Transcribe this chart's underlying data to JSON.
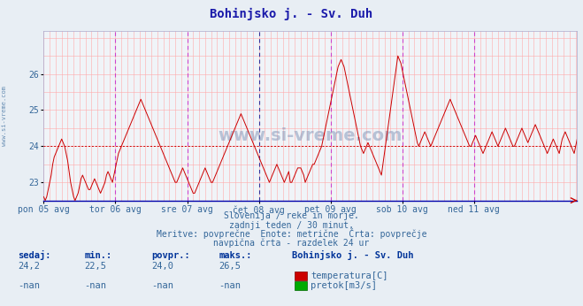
{
  "title": "Bohinjsko j. - Sv. Duh",
  "title_color": "#1a1aaa",
  "bg_color": "#e8eef4",
  "plot_bg_color": "#f0f4f8",
  "line_color": "#cc0000",
  "avg_line_color": "#cc0000",
  "avg_value": 24.0,
  "ylim": [
    22.5,
    27.2
  ],
  "yticks": [
    23,
    24,
    25,
    26
  ],
  "ylabel_color": "#336699",
  "xlabel_color": "#336699",
  "x_labels": [
    "pon 05 avg",
    "tor 06 avg",
    "sre 07 avg",
    "čet 08 avg",
    "pet 09 avg",
    "sob 10 avg",
    "ned 11 avg"
  ],
  "vline_color_day": "#333399",
  "vline_color_halfday": "#cc44cc",
  "vline_color_grid": "#ffaaaa",
  "hline_color_grid": "#ffaaaa",
  "watermark": "www.si-vreme.com",
  "subtitle1": "Slovenija / reke in morje.",
  "subtitle2": "zadnji teden / 30 minut.",
  "subtitle3": "Meritve: povprečne  Enote: metrične  Črta: povprečje",
  "subtitle4": "navpična črta - razdelek 24 ur",
  "subtitle_color": "#336699",
  "stat_label_color": "#336699",
  "stat_bold_color": "#003399",
  "sedaj": "24,2",
  "min_val": "22,5",
  "povpr": "24,0",
  "maks": "26,5",
  "station_name": "Bohinjsko j. - Sv. Duh",
  "legend_temp_color": "#cc0000",
  "legend_flow_color": "#00aa00",
  "temp_data": [
    22.6,
    22.5,
    22.6,
    22.8,
    23.0,
    23.2,
    23.5,
    23.7,
    23.8,
    23.9,
    24.0,
    24.1,
    24.2,
    24.1,
    24.0,
    23.8,
    23.6,
    23.3,
    23.0,
    22.8,
    22.6,
    22.5,
    22.6,
    22.7,
    22.9,
    23.1,
    23.2,
    23.1,
    23.0,
    22.9,
    22.8,
    22.8,
    22.9,
    23.0,
    23.1,
    23.0,
    22.9,
    22.8,
    22.7,
    22.8,
    22.9,
    23.0,
    23.2,
    23.3,
    23.2,
    23.1,
    23.0,
    23.2,
    23.4,
    23.6,
    23.8,
    23.9,
    24.0,
    24.1,
    24.2,
    24.3,
    24.4,
    24.5,
    24.6,
    24.7,
    24.8,
    24.9,
    25.0,
    25.1,
    25.2,
    25.3,
    25.2,
    25.1,
    25.0,
    24.9,
    24.8,
    24.7,
    24.6,
    24.5,
    24.4,
    24.3,
    24.2,
    24.1,
    24.0,
    23.9,
    23.8,
    23.7,
    23.6,
    23.5,
    23.4,
    23.3,
    23.2,
    23.1,
    23.0,
    23.0,
    23.1,
    23.2,
    23.3,
    23.4,
    23.3,
    23.2,
    23.1,
    23.0,
    22.9,
    22.8,
    22.7,
    22.7,
    22.8,
    22.9,
    23.0,
    23.1,
    23.2,
    23.3,
    23.4,
    23.3,
    23.2,
    23.1,
    23.0,
    23.0,
    23.1,
    23.2,
    23.3,
    23.4,
    23.5,
    23.6,
    23.7,
    23.8,
    23.9,
    24.0,
    24.1,
    24.2,
    24.3,
    24.4,
    24.5,
    24.6,
    24.7,
    24.8,
    24.9,
    24.8,
    24.7,
    24.6,
    24.5,
    24.4,
    24.3,
    24.2,
    24.1,
    24.0,
    23.9,
    23.8,
    23.7,
    23.6,
    23.5,
    23.4,
    23.3,
    23.2,
    23.1,
    23.0,
    23.1,
    23.2,
    23.3,
    23.4,
    23.5,
    23.4,
    23.3,
    23.2,
    23.1,
    23.0,
    23.1,
    23.2,
    23.3,
    23.0,
    23.0,
    23.1,
    23.2,
    23.3,
    23.4,
    23.4,
    23.4,
    23.3,
    23.2,
    23.0,
    23.1,
    23.2,
    23.3,
    23.4,
    23.5,
    23.5,
    23.6,
    23.7,
    23.8,
    23.9,
    24.0,
    24.2,
    24.4,
    24.6,
    24.8,
    25.0,
    25.2,
    25.4,
    25.6,
    25.8,
    26.0,
    26.2,
    26.3,
    26.4,
    26.3,
    26.2,
    26.0,
    25.8,
    25.6,
    25.4,
    25.2,
    25.0,
    24.8,
    24.6,
    24.4,
    24.2,
    24.0,
    23.9,
    23.8,
    23.9,
    24.0,
    24.1,
    24.0,
    23.9,
    23.8,
    23.7,
    23.6,
    23.5,
    23.4,
    23.3,
    23.2,
    23.5,
    23.8,
    24.1,
    24.4,
    24.7,
    25.0,
    25.3,
    25.6,
    25.9,
    26.2,
    26.5,
    26.4,
    26.3,
    26.1,
    25.9,
    25.7,
    25.5,
    25.3,
    25.1,
    24.9,
    24.7,
    24.5,
    24.3,
    24.1,
    24.0,
    24.1,
    24.2,
    24.3,
    24.4,
    24.3,
    24.2,
    24.1,
    24.0,
    24.1,
    24.2,
    24.3,
    24.4,
    24.5,
    24.6,
    24.7,
    24.8,
    24.9,
    25.0,
    25.1,
    25.2,
    25.3,
    25.2,
    25.1,
    25.0,
    24.9,
    24.8,
    24.7,
    24.6,
    24.5,
    24.4,
    24.3,
    24.2,
    24.1,
    24.0,
    24.0,
    24.1,
    24.2,
    24.3,
    24.2,
    24.1,
    24.0,
    23.9,
    23.8,
    23.9,
    24.0,
    24.1,
    24.2,
    24.3,
    24.4,
    24.3,
    24.2,
    24.1,
    24.0,
    24.1,
    24.2,
    24.3,
    24.4,
    24.5,
    24.4,
    24.3,
    24.2,
    24.1,
    24.0,
    24.0,
    24.1,
    24.2,
    24.3,
    24.4,
    24.5,
    24.4,
    24.3,
    24.2,
    24.1,
    24.2,
    24.3,
    24.4,
    24.5,
    24.6,
    24.5,
    24.4,
    24.3,
    24.2,
    24.1,
    24.0,
    23.9,
    23.8,
    23.9,
    24.0,
    24.1,
    24.2,
    24.1,
    24.0,
    23.9,
    23.8,
    24.0,
    24.2,
    24.3,
    24.4,
    24.3,
    24.2,
    24.1,
    24.0,
    23.9,
    23.8,
    24.0,
    24.2
  ]
}
